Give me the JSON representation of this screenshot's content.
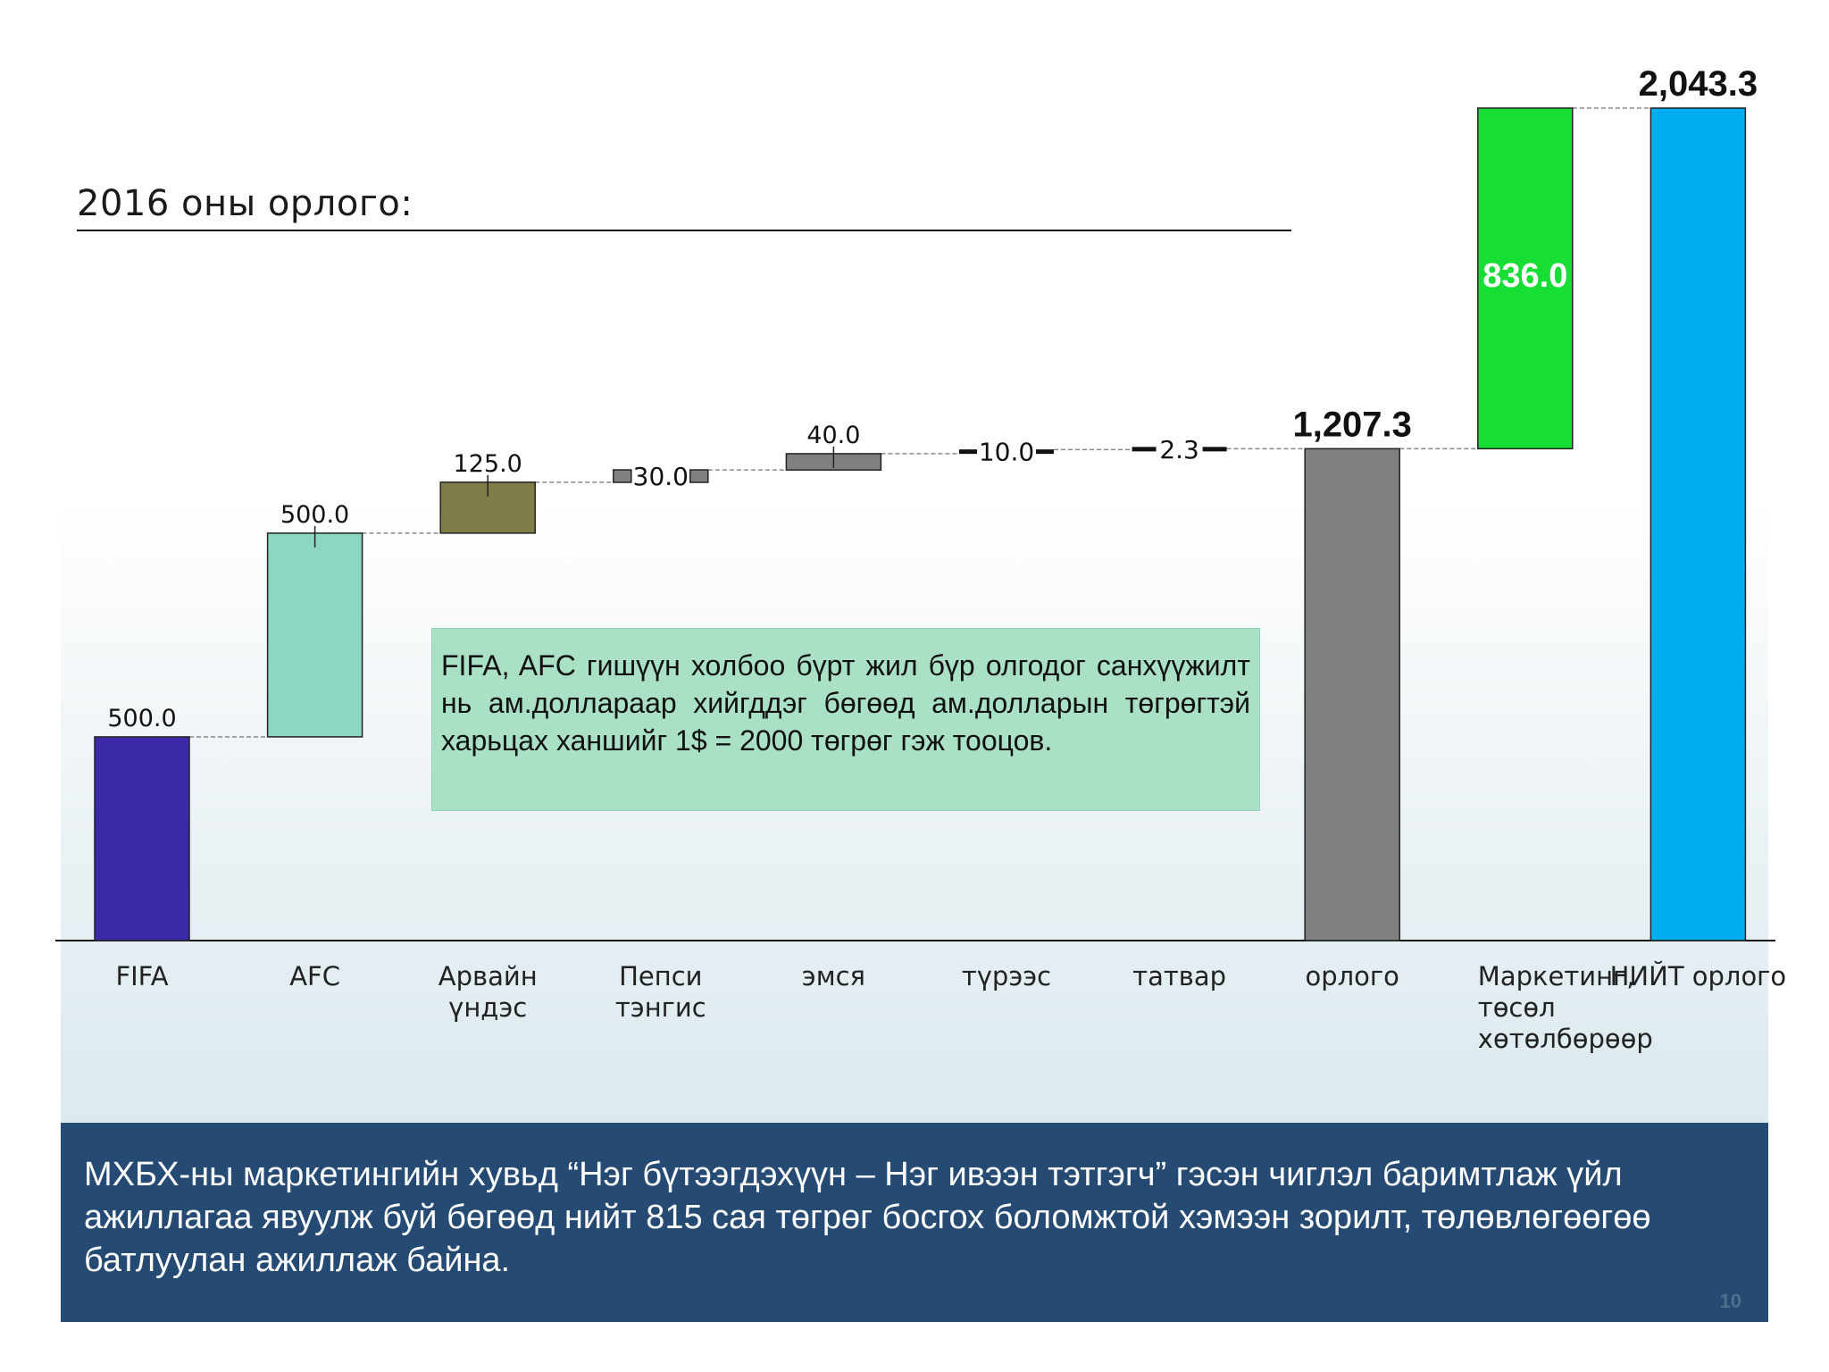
{
  "heading": "2016 оны орлого:",
  "note": "FIFA, AFC гишүүн холбоо бүрт жил бүр олгодог санхүүжилт нь ам.доллараар хийгддэг бөгөөд ам.долларын төгрөгтэй харьцах ханшийг 1$ = 2000 төгрөг гэж тооцов.",
  "footer": {
    "text": "МХБХ-ны маркетингийн хувьд “Нэг бүтээгдэхүүн – Нэг ивээн тэтгэгч” гэсэн чиглэл баримтлаж үйл ажиллагаа явуулж буй бөгөөд нийт 815 сая төгрөг босгох боломжтой хэмээн зорилт, төлөвлөгөөгөө батлуулан ажиллаж байна.",
    "page_number": "10"
  },
  "chart_data": {
    "type": "bar",
    "subtype": "waterfall",
    "ylim": [
      0,
      2043.3
    ],
    "grid": false,
    "legend": "none",
    "categories": [
      {
        "label": [
          "FIFA"
        ],
        "start": 0,
        "end": 500.0,
        "value_label": "500.0",
        "color": "#3b2aa8",
        "kind": "increase"
      },
      {
        "label": [
          "AFC"
        ],
        "start": 500.0,
        "end": 1000.0,
        "value_label": "500.0",
        "color": "#8dd6c2",
        "kind": "increase"
      },
      {
        "label": [
          "Арвайн",
          "үндэс"
        ],
        "start": 1000.0,
        "end": 1125.0,
        "value_label": "125.0",
        "color": "#7f7d48",
        "kind": "increase"
      },
      {
        "label": [
          "Пепси",
          "тэнгис"
        ],
        "start": 1125.0,
        "end": 1155.0,
        "value_label": "30.0",
        "color": "#808080",
        "kind": "increase"
      },
      {
        "label": [
          "эмся"
        ],
        "start": 1155.0,
        "end": 1195.0,
        "value_label": "40.0",
        "color": "#808080",
        "kind": "increase"
      },
      {
        "label": [
          "түрээс"
        ],
        "start": 1195.0,
        "end": 1205.0,
        "value_label": "10.0",
        "color": "#111111",
        "kind": "increase"
      },
      {
        "label": [
          "татвар"
        ],
        "start": 1205.0,
        "end": 1207.3,
        "value_label": "2.3",
        "color": "#111111",
        "kind": "increase"
      },
      {
        "label": [
          "орлого"
        ],
        "start": 0,
        "end": 1207.3,
        "value_label": "1,207.3",
        "color": "#808080",
        "kind": "total"
      },
      {
        "label": [
          "Маркетинг,",
          "төсөл",
          "хөтөлбөрөөр"
        ],
        "start": 1207.3,
        "end": 2043.3,
        "value_label": "836.0",
        "color": "#16de34",
        "kind": "increase"
      },
      {
        "label": [
          "НИЙТ орлого"
        ],
        "start": 0,
        "end": 2043.3,
        "value_label": "2,043.3",
        "color": "#00adee",
        "kind": "total"
      }
    ]
  }
}
